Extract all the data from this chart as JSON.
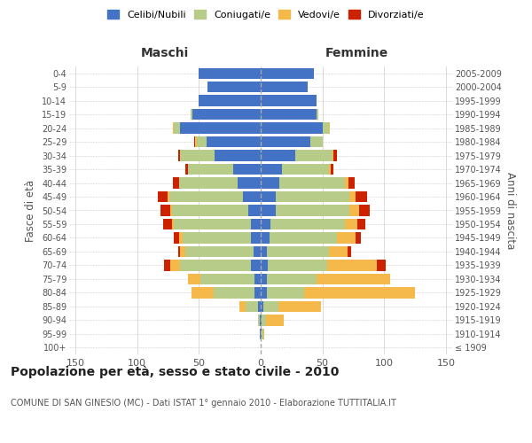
{
  "age_groups": [
    "100+",
    "95-99",
    "90-94",
    "85-89",
    "80-84",
    "75-79",
    "70-74",
    "65-69",
    "60-64",
    "55-59",
    "50-54",
    "45-49",
    "40-44",
    "35-39",
    "30-34",
    "25-29",
    "20-24",
    "15-19",
    "10-14",
    "5-9",
    "0-4"
  ],
  "birth_years": [
    "≤ 1909",
    "1910-1914",
    "1915-1919",
    "1920-1924",
    "1925-1929",
    "1930-1934",
    "1935-1939",
    "1940-1944",
    "1945-1949",
    "1950-1954",
    "1955-1959",
    "1960-1964",
    "1965-1969",
    "1970-1974",
    "1975-1979",
    "1980-1984",
    "1985-1989",
    "1990-1994",
    "1995-1999",
    "2000-2004",
    "2005-2009"
  ],
  "maschi": {
    "celibi": [
      0,
      1,
      1,
      2,
      5,
      5,
      8,
      6,
      8,
      8,
      10,
      14,
      19,
      22,
      37,
      44,
      65,
      55,
      50,
      43,
      50
    ],
    "coniugati": [
      0,
      0,
      1,
      10,
      33,
      44,
      57,
      55,
      55,
      62,
      62,
      60,
      47,
      37,
      28,
      8,
      5,
      2,
      0,
      0,
      0
    ],
    "vedovi": [
      0,
      0,
      0,
      5,
      18,
      10,
      8,
      4,
      3,
      2,
      1,
      1,
      0,
      0,
      0,
      1,
      1,
      0,
      0,
      0,
      0
    ],
    "divorziati": [
      0,
      0,
      0,
      0,
      0,
      0,
      5,
      2,
      4,
      7,
      8,
      8,
      5,
      2,
      2,
      1,
      0,
      0,
      0,
      0,
      0
    ]
  },
  "femmine": {
    "nubili": [
      0,
      1,
      1,
      2,
      5,
      5,
      6,
      5,
      7,
      8,
      12,
      12,
      15,
      17,
      28,
      40,
      50,
      45,
      45,
      38,
      43
    ],
    "coniugate": [
      0,
      1,
      3,
      12,
      30,
      40,
      48,
      50,
      55,
      60,
      60,
      60,
      53,
      38,
      30,
      10,
      5,
      2,
      0,
      0,
      0
    ],
    "vedove": [
      0,
      1,
      15,
      35,
      90,
      60,
      40,
      15,
      15,
      10,
      8,
      5,
      3,
      2,
      1,
      0,
      1,
      0,
      0,
      0,
      0
    ],
    "divorziate": [
      0,
      0,
      0,
      0,
      0,
      0,
      7,
      3,
      4,
      7,
      8,
      9,
      5,
      2,
      3,
      0,
      0,
      0,
      0,
      0,
      0
    ]
  },
  "colors": {
    "celibi": "#4472c4",
    "coniugati": "#b8cc8a",
    "vedovi": "#f4b94a",
    "divorziati": "#cc2200"
  },
  "xlim": 155,
  "title": "Popolazione per età, sesso e stato civile - 2010",
  "subtitle": "COMUNE DI SAN GINESIO (MC) - Dati ISTAT 1° gennaio 2010 - Elaborazione TUTTITALIA.IT",
  "xlabel_left": "Maschi",
  "xlabel_right": "Femmine",
  "ylabel": "Fasce di età",
  "ylabel_right": "Anni di nascita",
  "bg_color": "#ffffff",
  "grid_color": "#cccccc"
}
